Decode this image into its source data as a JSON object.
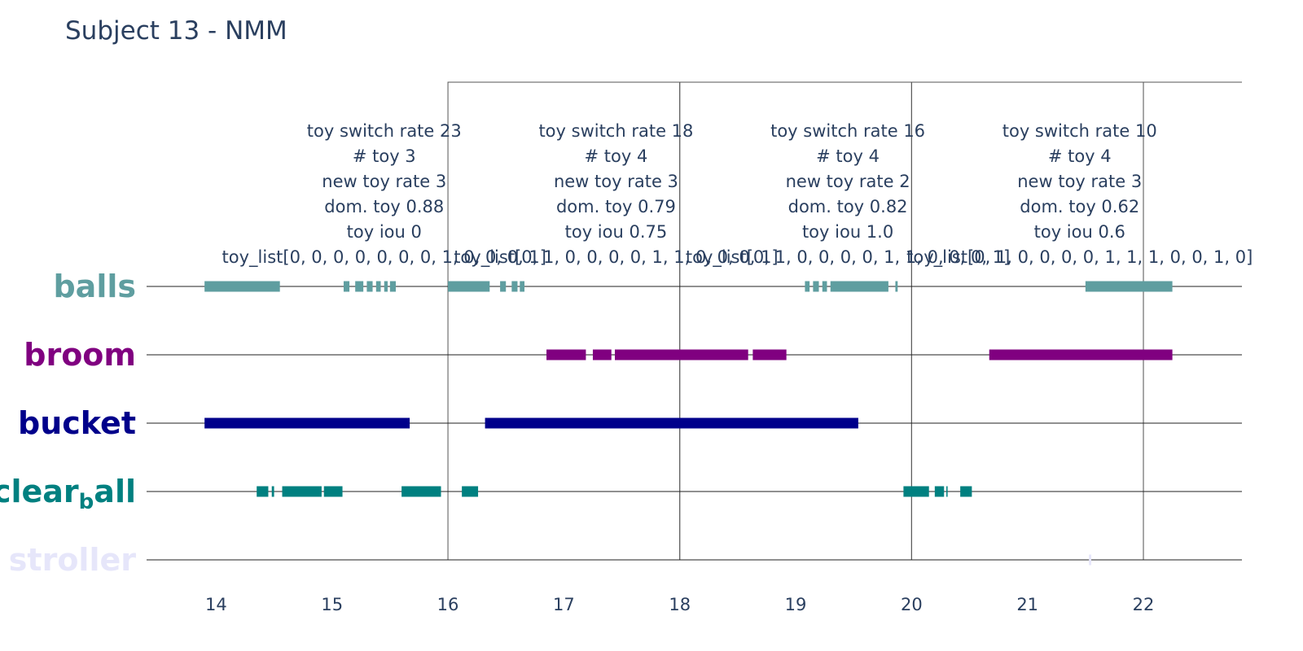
{
  "chart_data": {
    "type": "timeline",
    "title": "Subject 13 - NMM",
    "xlim": [
      13.4,
      22.85
    ],
    "x_ticks": [
      14,
      15,
      16,
      17,
      18,
      19,
      20,
      21,
      22
    ],
    "tracks": [
      {
        "name": "balls",
        "label_main": "balls",
        "label_sub": "",
        "label_tail": "",
        "color": "#5f9ea0",
        "intervals": [
          [
            13.9,
            14.55
          ],
          [
            15.1,
            15.15
          ],
          [
            15.2,
            15.27
          ],
          [
            15.3,
            15.35
          ],
          [
            15.38,
            15.42
          ],
          [
            15.45,
            15.48
          ],
          [
            15.5,
            15.55
          ],
          [
            16.0,
            16.36
          ],
          [
            16.45,
            16.5
          ],
          [
            16.55,
            16.6
          ],
          [
            16.62,
            16.66
          ],
          [
            19.08,
            19.12
          ],
          [
            19.15,
            19.2
          ],
          [
            19.23,
            19.27
          ],
          [
            19.3,
            19.8
          ],
          [
            19.86,
            19.88
          ],
          [
            21.5,
            22.25
          ]
        ]
      },
      {
        "name": "broom",
        "label_main": "broom",
        "label_sub": "",
        "label_tail": "",
        "color": "#800080",
        "intervals": [
          [
            16.85,
            17.19
          ],
          [
            17.25,
            17.41
          ],
          [
            17.44,
            18.59
          ],
          [
            18.63,
            18.92
          ],
          [
            20.67,
            22.25
          ]
        ]
      },
      {
        "name": "bucket",
        "label_main": "bucket",
        "label_sub": "",
        "label_tail": "",
        "color": "#00008b",
        "intervals": [
          [
            13.9,
            15.67
          ],
          [
            16.32,
            19.54
          ]
        ]
      },
      {
        "name": "clear_ball",
        "label_main": "clear",
        "label_sub": "b",
        "label_tail": "all",
        "color": "#008080",
        "intervals": [
          [
            14.35,
            14.45
          ],
          [
            14.48,
            14.5
          ],
          [
            14.57,
            14.91
          ],
          [
            14.93,
            15.09
          ],
          [
            15.6,
            15.94
          ],
          [
            16.12,
            16.26
          ],
          [
            19.93,
            20.15
          ],
          [
            20.2,
            20.28
          ],
          [
            20.3,
            20.31
          ],
          [
            20.42,
            20.52
          ]
        ]
      },
      {
        "name": "stroller",
        "label_main": "stroller",
        "label_sub": "",
        "label_tail": "",
        "color": "#e6e6fa",
        "intervals": [
          [
            21.53,
            21.55
          ]
        ]
      }
    ],
    "windows": [
      {
        "start": 16,
        "end": 18,
        "lines": [
          "toy switch rate 23",
          "# toy 3",
          "new toy rate 3",
          "dom. toy 0.88",
          "toy iou 0",
          "toy_list[0, 0, 0, 0, 0, 0, 0, 1, 0, 0, 0, 1]"
        ]
      },
      {
        "start": 18,
        "end": 20,
        "lines": [
          "toy switch rate 18",
          "# toy 4",
          "new toy rate 3",
          "dom. toy 0.79",
          "toy iou 0.75",
          "toy_list[0, 1, 0, 0, 0, 0, 1, 1, 0, 0, 0, 1]"
        ]
      },
      {
        "start": 20,
        "end": 22,
        "lines": [
          "toy switch rate 16",
          "# toy 4",
          "new toy rate 2",
          "dom. toy 0.82",
          "toy iou 1.0",
          "toy_list[0, 1, 0, 0, 0, 0, 1, 1, 0, 0, 0, 1]"
        ]
      },
      {
        "start": 22,
        "end": 24,
        "lines": [
          "toy switch rate 10",
          "# toy 4",
          "new toy rate 3",
          "dom. toy 0.62",
          "toy iou 0.6",
          "toy_list[0, 1, 0, 0, 0, 0, 1, 1, 1, 0, 0, 1, 0]"
        ]
      }
    ],
    "legend": "none",
    "grid": false
  }
}
